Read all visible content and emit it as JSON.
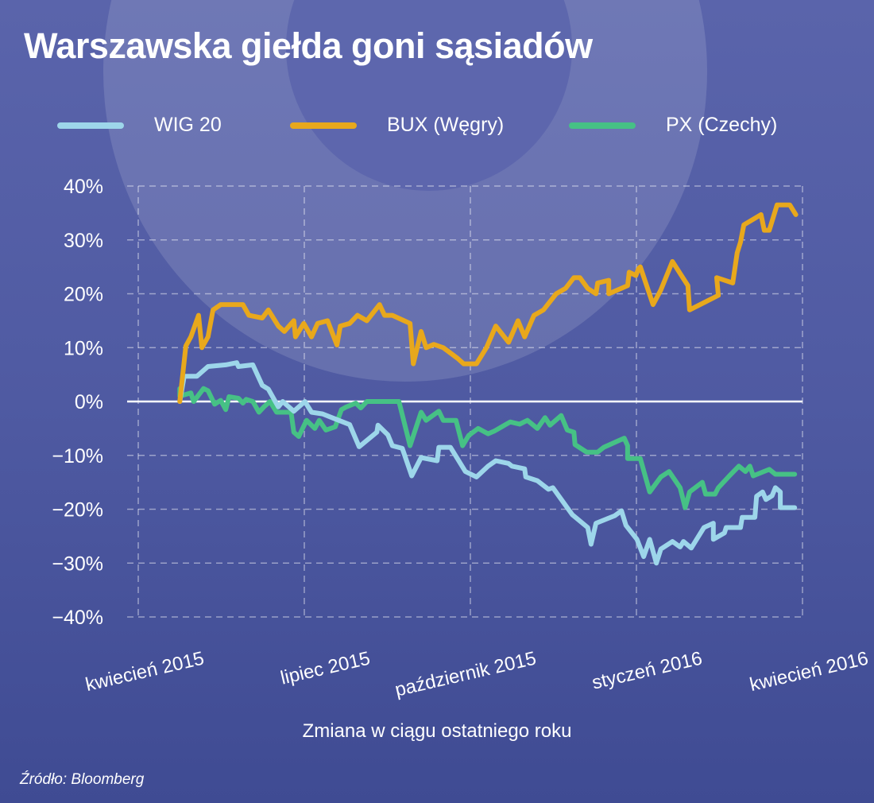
{
  "chart_data": {
    "type": "line",
    "title": "Warszawska giełda goni sąsiadów",
    "xlabel": "Zmiana w ciągu ostatniego roku",
    "ylabel": "",
    "x_unit": "months since kwiecień 2015",
    "xlim": [
      0,
      12
    ],
    "ylim": [
      -40,
      40
    ],
    "grid": true,
    "legend_position": "top",
    "x_ticks": [
      {
        "value": 0,
        "label": "kwiecień 2015"
      },
      {
        "value": 3,
        "label": "lipiec 2015"
      },
      {
        "value": 6,
        "label": "październik 2015"
      },
      {
        "value": 9,
        "label": "styczeń 2016"
      },
      {
        "value": 12,
        "label": "kwiecień 2016"
      }
    ],
    "y_ticks": [
      {
        "value": 40,
        "label": "40%"
      },
      {
        "value": 30,
        "label": "30%"
      },
      {
        "value": 20,
        "label": "20%"
      },
      {
        "value": 10,
        "label": "10%"
      },
      {
        "value": 0,
        "label": "0%"
      },
      {
        "value": -10,
        "label": "−10%"
      },
      {
        "value": -20,
        "label": "−20%"
      },
      {
        "value": -30,
        "label": "−30%"
      },
      {
        "value": -40,
        "label": "−40%"
      }
    ],
    "series": [
      {
        "name": "WIG 20",
        "color": "#9dd6ea",
        "x": [
          0.75,
          0.83,
          1.06,
          1.26,
          1.58,
          1.78,
          1.81,
          2.07,
          2.24,
          2.35,
          2.53,
          2.61,
          2.81,
          3.01,
          3.13,
          3.33,
          3.5,
          3.82,
          3.99,
          4.31,
          4.33,
          4.51,
          4.59,
          4.77,
          4.94,
          5.11,
          5.4,
          5.43,
          5.64,
          5.91,
          6.11,
          6.32,
          6.46,
          6.69,
          6.75,
          6.98,
          7.0,
          7.21,
          7.41,
          7.49,
          7.84,
          8.12,
          8.18,
          8.27,
          8.61,
          8.73,
          8.81,
          9.01,
          9.13,
          9.24,
          9.36,
          9.44,
          9.65,
          9.79,
          9.85,
          9.99,
          10.22,
          10.39,
          10.39,
          10.59,
          10.62,
          10.88,
          10.91,
          11.14,
          11.17,
          11.28,
          11.34,
          11.45,
          11.51,
          11.6,
          11.6,
          11.86
        ],
        "y": [
          0,
          4.7,
          4.7,
          6.5,
          6.8,
          7.2,
          6.5,
          6.8,
          3,
          2.3,
          -1,
          0,
          -1.8,
          0,
          -2,
          -2.3,
          -3,
          -4.3,
          -8.4,
          -5.7,
          -4.4,
          -6.2,
          -8.2,
          -8.7,
          -13.8,
          -10.4,
          -11,
          -8.5,
          -8.5,
          -13,
          -14,
          -12,
          -11,
          -11.5,
          -12,
          -12.5,
          -14,
          -14.7,
          -16.3,
          -16,
          -21,
          -23.4,
          -26.5,
          -22.6,
          -21.2,
          -20.3,
          -23,
          -25.6,
          -28.8,
          -25.6,
          -30,
          -27.4,
          -26,
          -27,
          -26,
          -27.2,
          -23.4,
          -22.6,
          -25.6,
          -24.4,
          -23.4,
          -23.4,
          -21.5,
          -21.5,
          -17.6,
          -16.8,
          -18.2,
          -17.5,
          -16,
          -16.8,
          -19.7,
          -19.7
        ]
      },
      {
        "name": "BUX (Węgry)",
        "color": "#e8a81c",
        "x": [
          0.75,
          0.86,
          0.95,
          1.09,
          1.15,
          1.26,
          1.35,
          1.49,
          1.72,
          1.89,
          2.0,
          2.24,
          2.35,
          2.53,
          2.64,
          2.81,
          2.84,
          2.99,
          3.13,
          3.24,
          3.42,
          3.59,
          3.65,
          3.82,
          3.96,
          4.13,
          4.36,
          4.45,
          4.59,
          4.91,
          4.97,
          5.11,
          5.2,
          5.34,
          5.51,
          5.77,
          5.88,
          6.11,
          6.29,
          6.46,
          6.69,
          6.86,
          6.98,
          7.15,
          7.32,
          7.55,
          7.72,
          7.87,
          7.98,
          8.12,
          8.27,
          8.3,
          8.5,
          8.5,
          8.84,
          8.87,
          8.99,
          9.04,
          9.07,
          9.3,
          9.44,
          9.65,
          9.93,
          9.96,
          10.48,
          10.45,
          10.74,
          10.82,
          10.88,
          10.94,
          11.25,
          11.31,
          11.4,
          11.54,
          11.77,
          11.88
        ],
        "y": [
          0,
          10.3,
          12,
          16,
          10,
          12,
          17,
          18,
          18,
          18,
          16,
          15.5,
          17,
          14,
          13,
          15,
          12,
          14.5,
          12,
          14.5,
          15,
          10.5,
          14,
          14.5,
          16,
          15,
          18,
          16,
          16,
          14.5,
          7,
          13,
          10,
          10.6,
          10,
          8,
          7,
          7,
          10,
          14,
          11,
          15,
          12,
          16,
          17,
          20,
          21,
          23,
          23,
          21,
          20,
          22,
          22.5,
          20,
          21.5,
          24,
          23.4,
          24.7,
          25,
          18,
          20.7,
          26,
          21.5,
          17,
          19.7,
          23,
          22,
          27.6,
          29.6,
          32.8,
          34.7,
          31.8,
          31.8,
          36.5,
          36.5,
          34.7
        ]
      },
      {
        "name": "PX (Czechy)",
        "color": "#46c185",
        "x": [
          0.75,
          0.75,
          0.95,
          1.0,
          1.18,
          1.26,
          1.38,
          1.49,
          1.58,
          1.64,
          1.81,
          1.89,
          1.95,
          2.07,
          2.18,
          2.27,
          2.38,
          2.5,
          2.76,
          2.81,
          2.9,
          3.04,
          3.19,
          3.27,
          3.39,
          3.56,
          3.67,
          3.76,
          3.93,
          4.02,
          4.13,
          4.71,
          4.91,
          5.11,
          5.2,
          5.43,
          5.51,
          5.74,
          5.86,
          5.97,
          6.14,
          6.32,
          6.43,
          6.72,
          6.89,
          7.03,
          7.21,
          7.35,
          7.44,
          7.64,
          7.75,
          7.87,
          7.89,
          8.1,
          8.3,
          8.41,
          8.67,
          8.78,
          8.84,
          8.84,
          9.07,
          9.24,
          9.44,
          9.59,
          9.79,
          9.88,
          9.96,
          10.19,
          10.25,
          10.42,
          10.48,
          10.68,
          10.85,
          10.97,
          11.05,
          11.11,
          11.4,
          11.51,
          11.86
        ],
        "y": [
          2.4,
          1,
          1.6,
          0,
          2.4,
          2,
          -0.5,
          0.2,
          -1.5,
          0.9,
          0.6,
          -0.3,
          0.4,
          0,
          -2,
          -1,
          0,
          -2,
          -2,
          -5.7,
          -6.5,
          -3.5,
          -5,
          -3.5,
          -5.3,
          -4.7,
          -1.5,
          -1,
          -0.3,
          -1.2,
          0,
          0,
          -8.2,
          -2,
          -3.5,
          -1.8,
          -3.5,
          -3.5,
          -8.2,
          -6.3,
          -5,
          -6,
          -5.5,
          -3.8,
          -4.2,
          -3.5,
          -5,
          -3,
          -4.4,
          -2.6,
          -5.3,
          -5.7,
          -8,
          -9.4,
          -9.4,
          -8.5,
          -7.3,
          -6.8,
          -8.2,
          -10.6,
          -10.6,
          -16.8,
          -14,
          -13,
          -16,
          -19.7,
          -16.8,
          -15,
          -17.2,
          -17.2,
          -16,
          -13.8,
          -12,
          -13,
          -12,
          -13.8,
          -12.6,
          -13.5,
          -13.5
        ]
      }
    ]
  },
  "source": "Źródło: Bloomberg"
}
